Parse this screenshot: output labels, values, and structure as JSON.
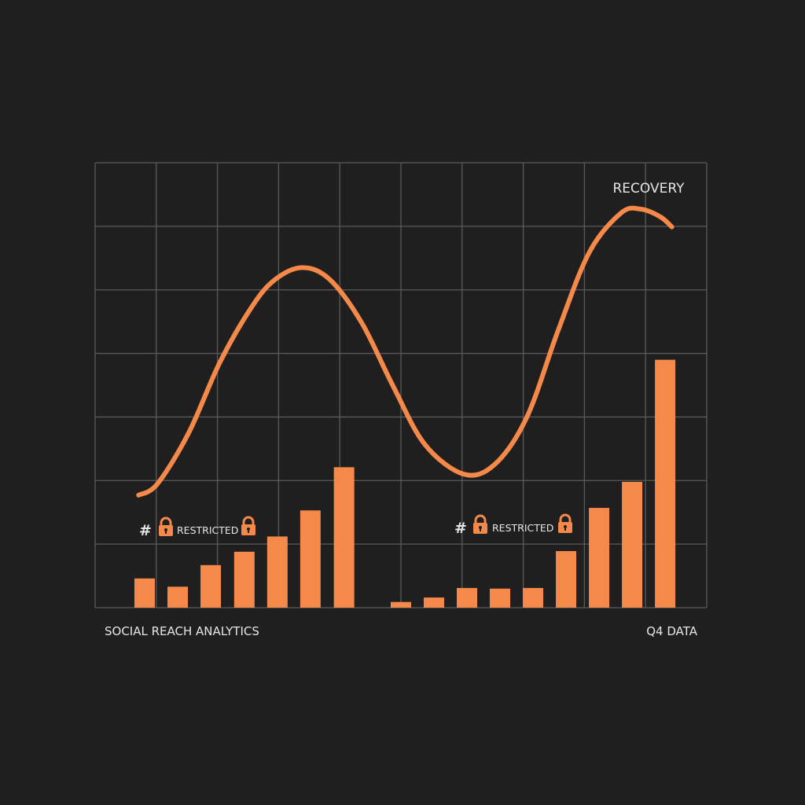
{
  "chart_data": {
    "type": "bar+line",
    "title": "",
    "xlabel": "",
    "ylabel": "",
    "xlim": [
      0,
      10
    ],
    "ylim": [
      0,
      7
    ],
    "grid": true,
    "colors": {
      "background": "#1f1f1f",
      "grid": "#5a5a5a",
      "series": "#f5894a",
      "text": "#e6e6e6"
    },
    "bars": [
      {
        "group": 1,
        "x": [
          0.81,
          1.35,
          1.89,
          2.44,
          2.98,
          3.52,
          4.07
        ],
        "values": [
          0.46,
          0.33,
          0.67,
          0.88,
          1.12,
          1.53,
          2.21
        ]
      },
      {
        "group": 2,
        "x": [
          5.0,
          5.54,
          6.08,
          6.62,
          7.16,
          7.7,
          8.24,
          8.78,
          9.32
        ],
        "values": [
          0.09,
          0.16,
          0.31,
          0.3,
          0.31,
          0.89,
          1.57,
          1.98,
          3.9
        ]
      }
    ],
    "line": {
      "x": [
        0.71,
        1.02,
        1.53,
        2.04,
        2.56,
        2.94,
        3.39,
        3.84,
        4.36,
        4.87,
        5.39,
        6.03,
        6.54,
        7.06,
        7.57,
        8.08,
        8.6,
        8.92,
        9.24,
        9.43
      ],
      "y": [
        1.77,
        1.95,
        2.75,
        3.86,
        4.73,
        5.16,
        5.35,
        5.16,
        4.48,
        3.49,
        2.57,
        2.1,
        2.26,
        3.0,
        4.36,
        5.59,
        6.21,
        6.27,
        6.15,
        5.99
      ]
    },
    "annotations": {
      "recovery": "RECOVERY",
      "restricted_1": {
        "hash": "#",
        "text": "RESTRICTED",
        "icon": "lock-icon"
      },
      "restricted_2": {
        "hash": "#",
        "text": "RESTRICTED",
        "icon": "lock-icon"
      }
    },
    "footer": {
      "left": "SOCIAL REACH ANALYTICS",
      "right": "Q4 DATA"
    }
  }
}
